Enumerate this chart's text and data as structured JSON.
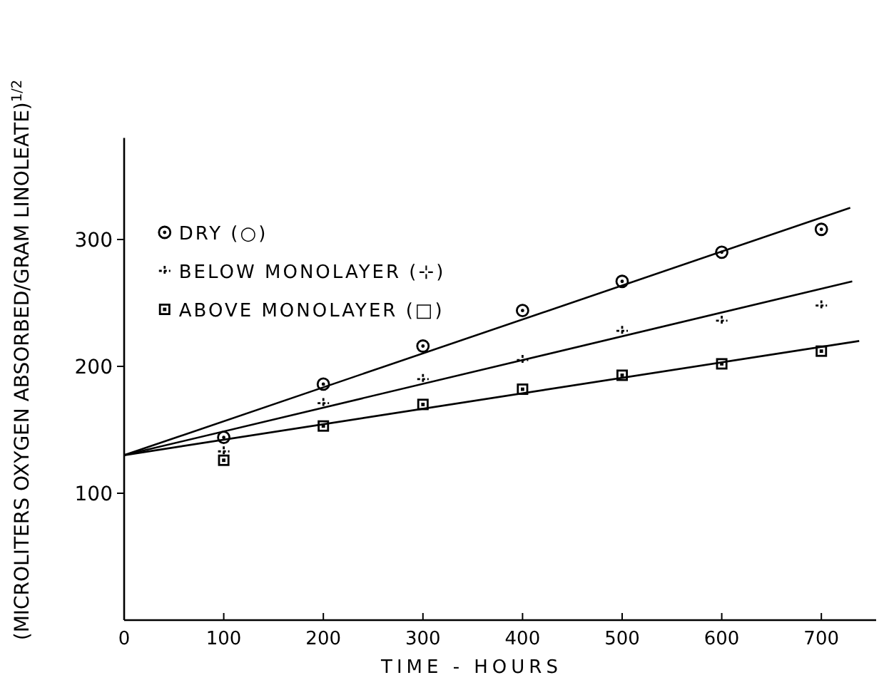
{
  "chart_data": {
    "type": "scatter",
    "xlabel": "TIME - HOURS",
    "ylabel": "(MICROLITERS OXYGEN ABSORBED/GRAM LINOLEATE)$^{1/2}$",
    "x": [
      100,
      200,
      300,
      400,
      500,
      600,
      700
    ],
    "series": [
      {
        "name": "DRY (○)",
        "color": "#000000",
        "marker": "circle",
        "values": [
          144,
          186,
          216,
          244,
          267,
          290,
          308
        ]
      },
      {
        "name": "BELOW MONOLAYER (⊹)",
        "color": "#000000",
        "marker": "cross",
        "values": [
          133,
          171,
          190,
          205,
          228,
          236,
          248
        ]
      },
      {
        "name": "ABOVE MONOLAYER (□)",
        "color": "#000000",
        "marker": "square",
        "values": [
          126,
          153,
          170,
          182,
          193,
          202,
          212
        ]
      },
      {
        "type": "line",
        "color": "#000000",
        "x": [
          0,
          729
        ],
        "values": [
          130,
          325
        ]
      },
      {
        "type": "line",
        "color": "#000000",
        "x": [
          0,
          731
        ],
        "values": [
          130,
          267
        ]
      },
      {
        "type": "line",
        "color": "#000000",
        "x": [
          0,
          738
        ],
        "values": [
          130,
          220
        ]
      }
    ],
    "xlim": [
      0,
      755
    ],
    "ylim": [
      0,
      380
    ],
    "xticks": [
      0,
      100,
      200,
      300,
      400,
      500,
      600,
      700
    ],
    "yticks": [
      100,
      200,
      300
    ],
    "grid": false,
    "legend": "top left"
  }
}
